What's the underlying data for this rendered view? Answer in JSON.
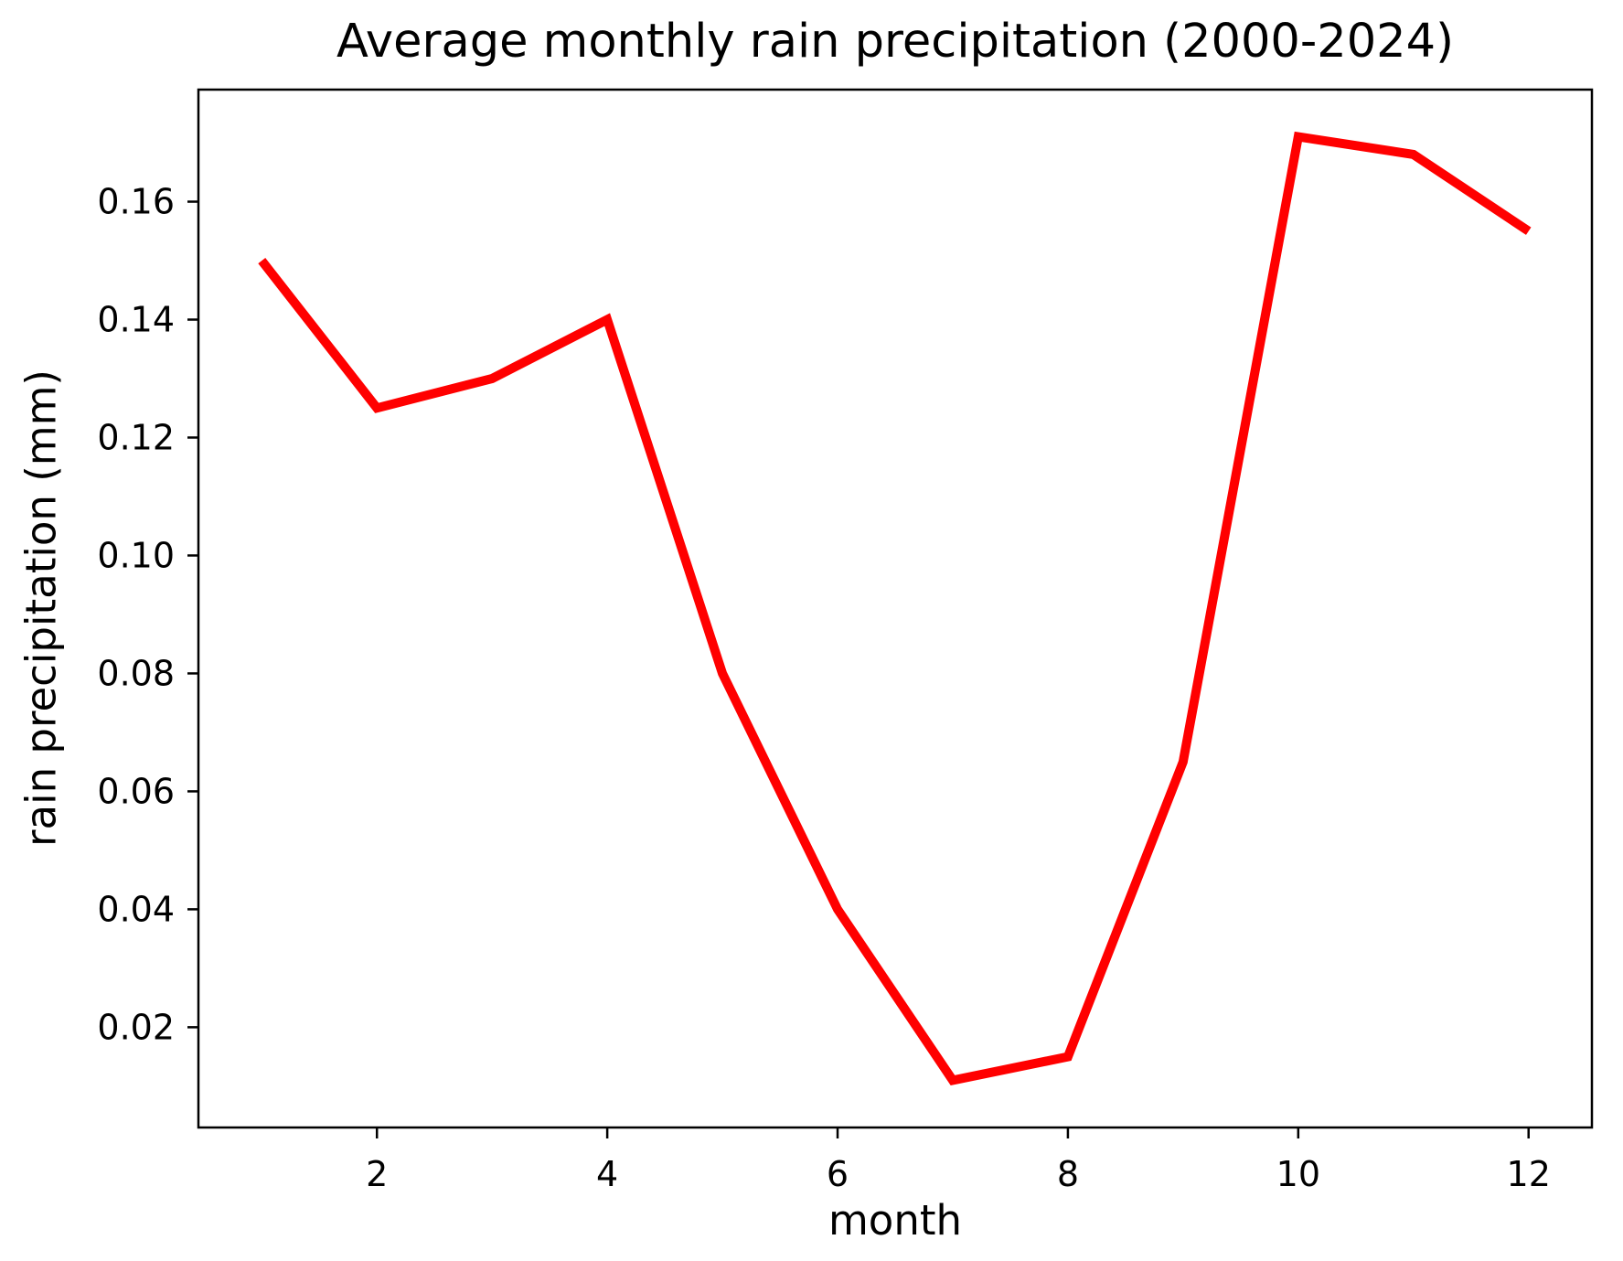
{
  "chart_data": {
    "type": "line",
    "title": "Average monthly rain precipitation (2000-2024)",
    "xlabel": "month",
    "ylabel": "rain precipitation (mm)",
    "x": [
      1,
      2,
      3,
      4,
      5,
      6,
      7,
      8,
      9,
      10,
      11,
      12
    ],
    "series": [
      {
        "name": "average monthly rain precipitation",
        "values": [
          0.15,
          0.125,
          0.13,
          0.14,
          0.08,
          0.04,
          0.011,
          0.015,
          0.065,
          0.171,
          0.168,
          0.155
        ]
      }
    ],
    "line_color": "#ff0000",
    "axis_color": "#000000",
    "xlim": [
      0.45,
      12.55
    ],
    "ylim": [
      0.003,
      0.179
    ],
    "xticks": [
      2,
      4,
      6,
      8,
      10,
      12
    ],
    "xtick_labels": [
      "2",
      "4",
      "6",
      "8",
      "10",
      "12"
    ],
    "yticks": [
      0.02,
      0.04,
      0.06,
      0.08,
      0.1,
      0.12,
      0.14,
      0.16
    ],
    "ytick_labels": [
      "0.02",
      "0.04",
      "0.06",
      "0.08",
      "0.10",
      "0.12",
      "0.14",
      "0.16"
    ],
    "grid": false,
    "legend": null
  }
}
